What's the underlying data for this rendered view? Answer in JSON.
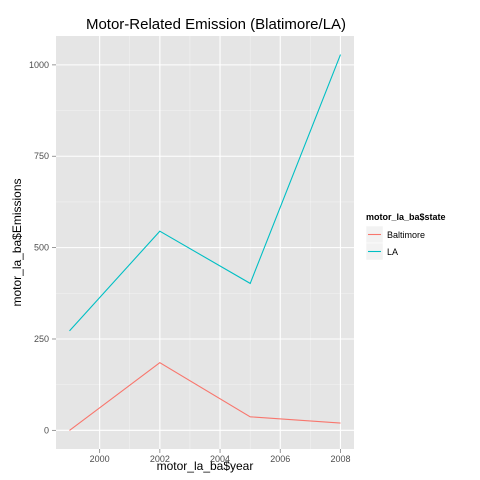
{
  "chart_data": {
    "type": "line",
    "title": "Motor-Related Emission (Blatimore/LA)",
    "xlabel": "motor_la_ba$year",
    "ylabel": "motor_la_ba$Emissions",
    "x": [
      1999,
      2002,
      2005,
      2008
    ],
    "series": [
      {
        "name": "Baltimore",
        "color": "#F8766D",
        "values": [
          0,
          185,
          37,
          20
        ]
      },
      {
        "name": "LA",
        "color": "#00BFC4",
        "values": [
          272,
          545,
          402,
          1028
        ]
      }
    ],
    "xlim": [
      1998.55,
      2008.45
    ],
    "ylim": [
      -51,
      1079
    ],
    "xticks": [
      2000,
      2002,
      2004,
      2006,
      2008
    ],
    "xtick_labels": [
      "2000",
      "2002",
      "2004",
      "2006",
      "2008"
    ],
    "yticks": [
      0,
      250,
      500,
      750,
      1000
    ],
    "ytick_labels": [
      "0",
      "250",
      "500",
      "750",
      "1000"
    ],
    "grid": true,
    "legend": {
      "title": "motor_la_ba$state",
      "position": "right"
    },
    "panel_color": "#E5E5E5",
    "grid_color": "#FFFFFF"
  }
}
